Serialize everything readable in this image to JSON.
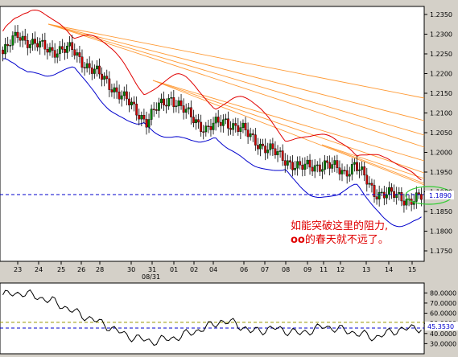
{
  "chart_data": [
    {
      "type": "candlestick",
      "y_ticks": [
        "1.2350",
        "1.2300",
        "1.2250",
        "1.2200",
        "1.2150",
        "1.2100",
        "1.2050",
        "1.2000",
        "1.1950",
        "1.1900",
        "1.1850",
        "1.1800",
        "1.1750"
      ],
      "ylim": [
        1.1735,
        1.2365
      ],
      "x_tick_labels": [
        "23",
        "24",
        "25",
        "26",
        "28",
        "30",
        "31",
        "01",
        "02",
        "04",
        "06",
        "07",
        "08",
        "09",
        "11",
        "12",
        "13",
        "14",
        "15"
      ],
      "x_sub_label": "08/31",
      "current_price_label": "1.1890",
      "current_price": 1.189,
      "annotation_line1": "如能突破这里的阻力,",
      "annotation_line2_bold": "oo",
      "annotation_line2_rest": "的春天就不远了。",
      "colors": {
        "up": "#008000",
        "down": "#cc0000",
        "upper_band": "#e00000",
        "lower_band": "#0000cc",
        "fan_lines": "#ff9933",
        "price_line": "#0000cc",
        "ellipse": "#33cc33"
      }
    },
    {
      "type": "line",
      "y_ticks": [
        "80.0000",
        "70.0000",
        "60.0000",
        "50.0000",
        "40.0000",
        "30.0000"
      ],
      "ylim": [
        20,
        85
      ],
      "current_label": "45.3530",
      "current_value": 45.353,
      "reference_levels": [
        51,
        45.353
      ],
      "colors": {
        "line": "#000000",
        "current": "#0000cc",
        "reference": "#999900"
      }
    }
  ]
}
